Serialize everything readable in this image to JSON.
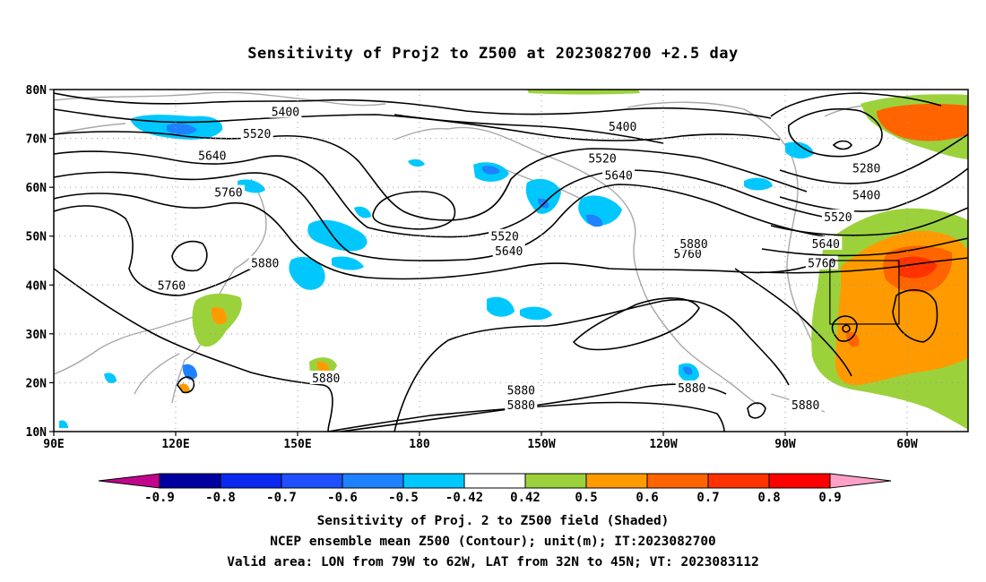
{
  "title": "Sensitivity of Proj2 to Z500 at 2023082700 +2.5 day",
  "map": {
    "lon_ticks": [
      "90E",
      "120E",
      "150E",
      "180",
      "150W",
      "120W",
      "90W",
      "60W"
    ],
    "lat_ticks": [
      "80N",
      "70N",
      "60N",
      "50N",
      "40N",
      "30N",
      "20N",
      "10N"
    ],
    "lon_range_deg_east": [
      90,
      315
    ],
    "lat_range_deg": [
      10,
      80
    ],
    "grid": "dotted",
    "contour_labels": [
      {
        "text": "5400",
        "lon": 147,
        "lat": 75.5
      },
      {
        "text": "5400",
        "lon": 230,
        "lat": 72.5
      },
      {
        "text": "5520",
        "lon": 140,
        "lat": 71
      },
      {
        "text": "5640",
        "lon": 129,
        "lat": 66.5
      },
      {
        "text": "5520",
        "lon": 225,
        "lat": 66
      },
      {
        "text": "5640",
        "lon": 229,
        "lat": 62.5
      },
      {
        "text": "5760",
        "lon": 133,
        "lat": 59
      },
      {
        "text": "5280",
        "lon": 290,
        "lat": 64
      },
      {
        "text": "5400",
        "lon": 290,
        "lat": 58.5
      },
      {
        "text": "5520",
        "lon": 283,
        "lat": 54
      },
      {
        "text": "5520",
        "lon": 201,
        "lat": 50
      },
      {
        "text": "5640",
        "lon": 202,
        "lat": 47
      },
      {
        "text": "5760",
        "lon": 246,
        "lat": 46.5
      },
      {
        "text": "5880",
        "lon": 247.5,
        "lat": 48.5
      },
      {
        "text": "5640",
        "lon": 280,
        "lat": 48.5
      },
      {
        "text": "5760",
        "lon": 279,
        "lat": 44.5
      },
      {
        "text": "5880",
        "lon": 142,
        "lat": 44.5
      },
      {
        "text": "5760",
        "lon": 119,
        "lat": 40
      },
      {
        "text": "5880",
        "lon": 157,
        "lat": 21
      },
      {
        "text": "5880",
        "lon": 205,
        "lat": 18.5
      },
      {
        "text": "5880",
        "lon": 205,
        "lat": 15.5
      },
      {
        "text": "5880",
        "lon": 247,
        "lat": 19
      },
      {
        "text": "5880",
        "lon": 275,
        "lat": 15.5
      }
    ],
    "valid_box": {
      "lon_min": 281,
      "lon_max": 298,
      "lat_min": 32,
      "lat_max": 45
    }
  },
  "colorbar": {
    "labels": [
      "-0.9",
      "-0.8",
      "-0.7",
      "-0.6",
      "-0.5",
      "-0.42",
      "0.42",
      "0.5",
      "0.6",
      "0.7",
      "0.8",
      "0.9"
    ],
    "colors": [
      "#c0068c",
      "#0000a0",
      "#0a28f0",
      "#1e50ff",
      "#1e82ff",
      "#00c8ff",
      "#ffffff",
      "#9bd23c",
      "#ff9b00",
      "#ff6400",
      "#ff3200",
      "#ff0000",
      "#ffa0c8"
    ]
  },
  "captions": {
    "line1": "Sensitivity of Proj. 2 to Z500 field (Shaded)",
    "line2": "NCEP ensemble mean Z500 (Contour); unit(m); IT:2023082700",
    "line3": "Valid area: LON from 79W to 62W, LAT from 32N to 45N; VT: 2023083112"
  }
}
